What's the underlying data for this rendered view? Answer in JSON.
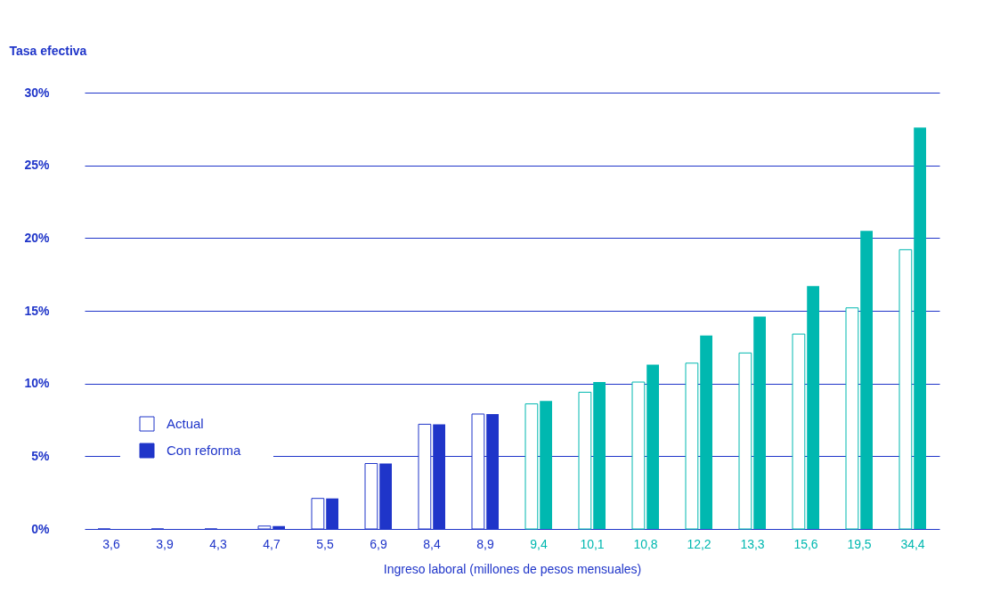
{
  "chart_data": {
    "type": "bar",
    "xlabel": "Ingreso laboral (millones de pesos mensuales)",
    "ylabel": "Tasa efectiva",
    "categories": [
      "3,6",
      "3,9",
      "4,3",
      "4,7",
      "5,5",
      "6,9",
      "8,4",
      "8,9",
      "9,4",
      "10,1",
      "10,8",
      "12,2",
      "13,3",
      "15,6",
      "19,5",
      "34,4"
    ],
    "series": [
      {
        "name": "Actual",
        "color": "#1f35c9",
        "colors": [
          "#1f35c9",
          "#1f35c9",
          "#1f35c9",
          "#1f35c9",
          "#1f35c9",
          "#1f35c9",
          "#1f35c9",
          "#1f35c9",
          "#00b8b0",
          "#00b8b0",
          "#00b8b0",
          "#00b8b0",
          "#00b8b0",
          "#00b8b0",
          "#00b8b0",
          "#00b8b0"
        ],
        "values": [
          0,
          0,
          0,
          0.2,
          2.1,
          4.5,
          7.2,
          7.9,
          8.6,
          9.4,
          10.1,
          11.4,
          12.1,
          13.4,
          15.2,
          19.2
        ]
      },
      {
        "name": "Con reforma",
        "color": "#1f35c9",
        "colors": [
          "#1f35c9",
          "#1f35c9",
          "#1f35c9",
          "#1f35c9",
          "#1f35c9",
          "#1f35c9",
          "#1f35c9",
          "#1f35c9",
          "#00b8b0",
          "#00b8b0",
          "#00b8b0",
          "#00b8b0",
          "#00b8b0",
          "#00b8b0",
          "#00b8b0",
          "#00b8b0"
        ],
        "values": [
          0,
          0,
          0,
          0.2,
          2.1,
          4.5,
          7.2,
          7.9,
          8.8,
          10.1,
          11.3,
          13.3,
          14.6,
          16.7,
          20.5,
          27.6
        ]
      }
    ],
    "ylim": [
      0,
      30
    ],
    "yticks": [
      {
        "value": 0,
        "label": "0%"
      },
      {
        "value": 5,
        "label": "5%"
      },
      {
        "value": 10,
        "label": "10%"
      },
      {
        "value": 15,
        "label": "15%"
      },
      {
        "value": 20,
        "label": "20%"
      },
      {
        "value": 25,
        "label": "25%"
      },
      {
        "value": 30,
        "label": "30%"
      }
    ],
    "grid": "y",
    "legend": "left"
  }
}
